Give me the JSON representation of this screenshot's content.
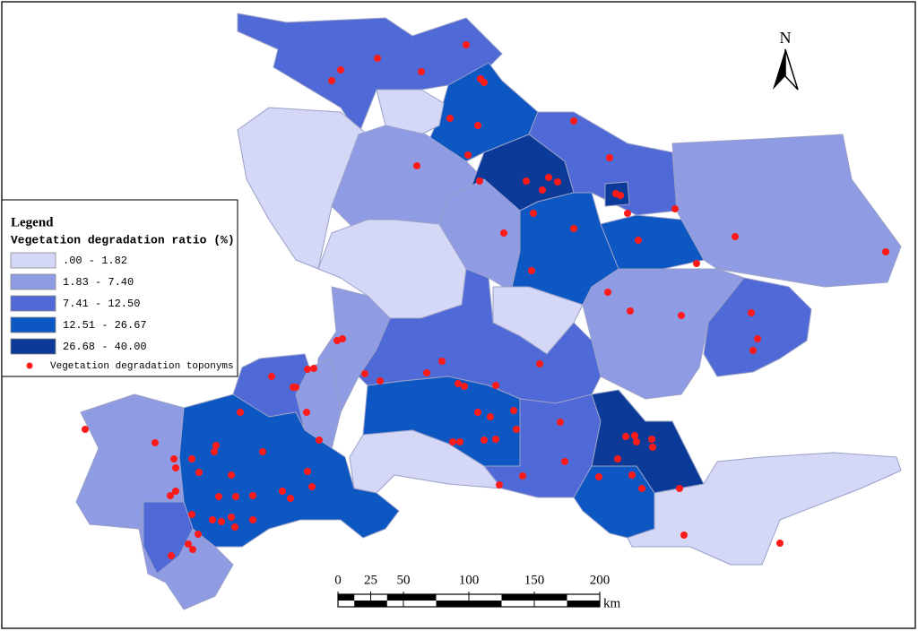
{
  "legend": {
    "title": "Legend",
    "subtitle": "Vegetation degradation ratio (%)",
    "classes": [
      {
        "label": ".00 - 1.82",
        "color": "#d5d7f7"
      },
      {
        "label": "1.83 - 7.40",
        "color": "#8f9be2"
      },
      {
        "label": "7.41 - 12.50",
        "color": "#4f6ad6"
      },
      {
        "label": "12.51 - 26.67",
        "color": "#0d57c2"
      },
      {
        "label": "26.68 - 40.00",
        "color": "#0b3a98"
      }
    ],
    "points": {
      "label": "Vegetation degradation toponyms",
      "color": "#ff1a1a"
    }
  },
  "north": "N",
  "scale_bar": {
    "ticks": [
      0,
      25,
      50,
      100,
      150,
      200
    ],
    "unit": "km"
  }
}
